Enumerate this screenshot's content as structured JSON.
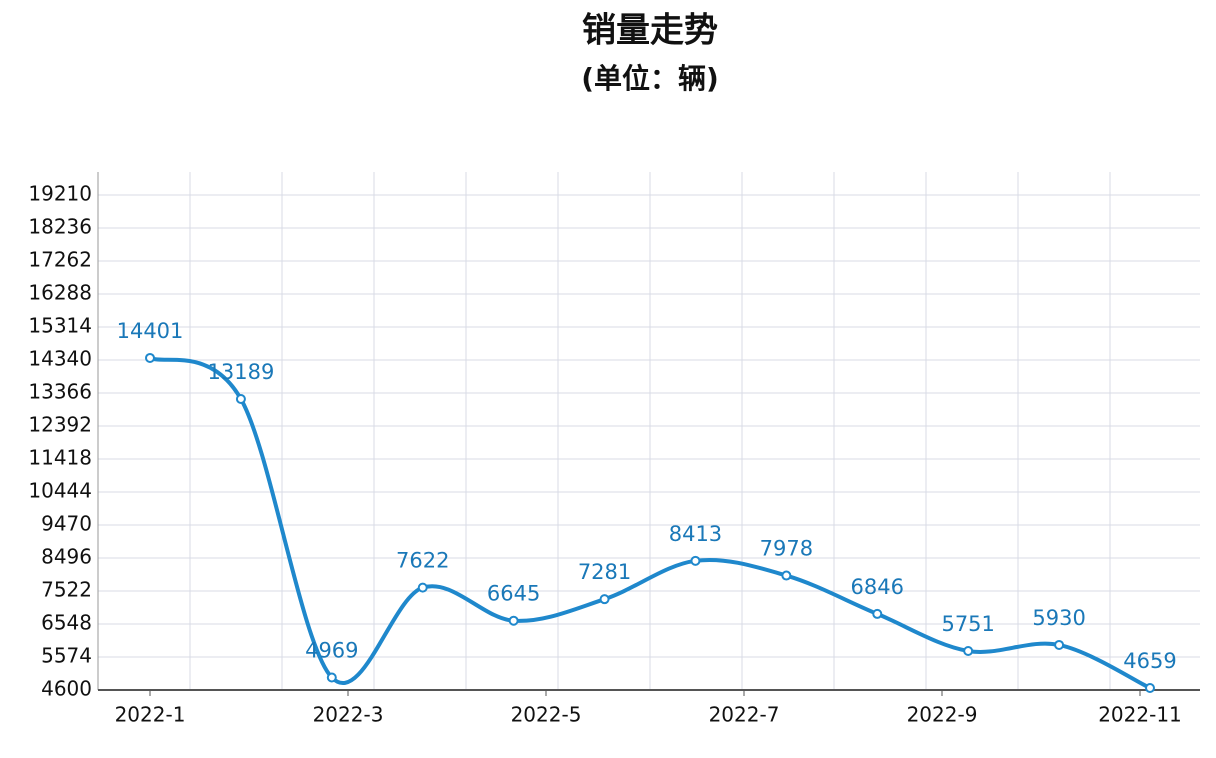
{
  "chart_data": {
    "type": "line",
    "title": "销量走势",
    "subtitle": "(单位：辆)",
    "values": [
      14401,
      13189,
      4969,
      7622,
      6645,
      7281,
      8413,
      7978,
      6846,
      5751,
      5930,
      4659
    ],
    "xtick_labels": [
      "2022-1",
      "2022-3",
      "2022-5",
      "2022-7",
      "2022-9",
      "2022-11"
    ],
    "color": "#1f88cc",
    "ylim": [
      4600,
      19890
    ],
    "yticks": [
      4600,
      5574,
      6548,
      7522,
      8496,
      9470,
      10444,
      11418,
      12392,
      13366,
      14340,
      15314,
      16288,
      17262,
      18236,
      19210
    ],
    "grid": true
  }
}
